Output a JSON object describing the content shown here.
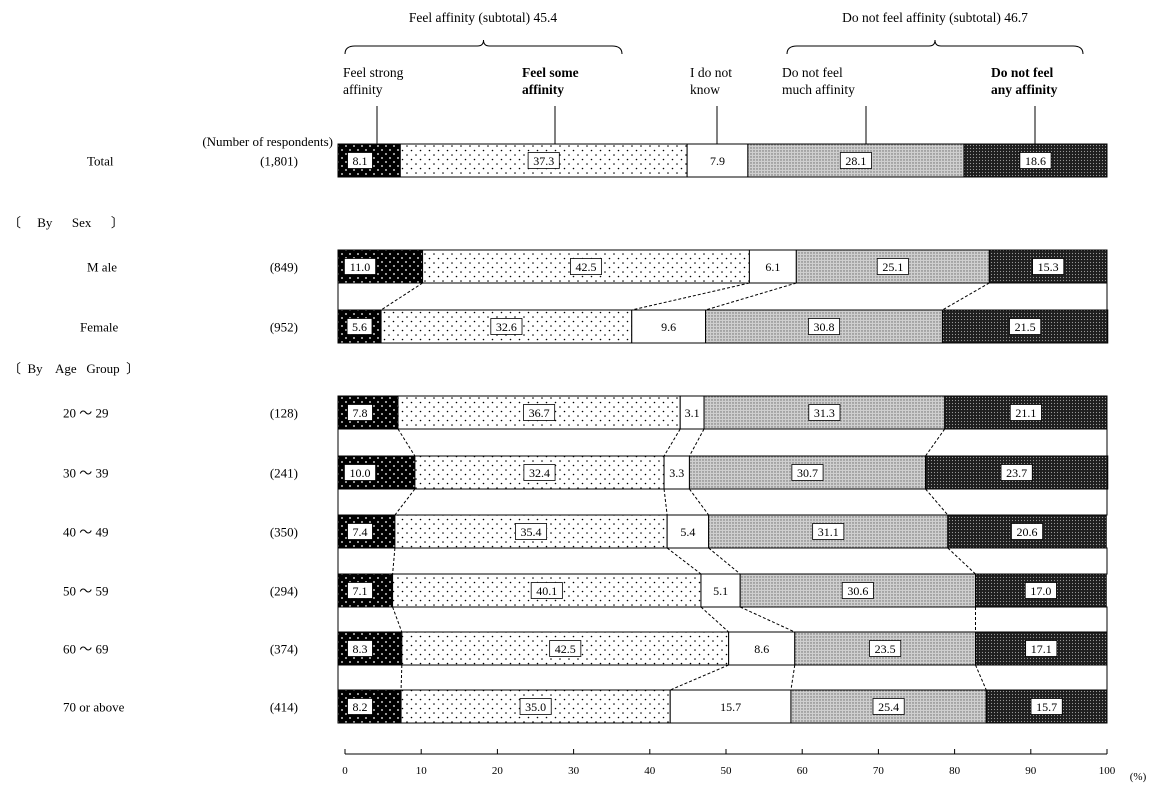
{
  "chart_data": {
    "type": "bar",
    "orientation": "horizontal",
    "stacked": true,
    "percent": true,
    "xlim": [
      0,
      100
    ],
    "xticks": [
      "0",
      "10",
      "20",
      "30",
      "40",
      "50",
      "60",
      "70",
      "80",
      "90",
      "100"
    ],
    "x_unit": "(%)",
    "respondents_header": "(Number of respondents)",
    "subtotals": [
      {
        "label": "Feel affinity  (subtotal) 45.4"
      },
      {
        "label": "Do not feel affinity  (subtotal) 46.7"
      }
    ],
    "series": [
      {
        "name": "Feel strong affinity",
        "header": [
          "Feel strong",
          "affinity"
        ],
        "fill": "solid-black-dots"
      },
      {
        "name": "Feel some affinity",
        "header": [
          "Feel some",
          "affinity"
        ],
        "fill": "sparse-dots"
      },
      {
        "name": "I do not know",
        "header": [
          "I do not",
          "know"
        ],
        "fill": "white"
      },
      {
        "name": "Do not feel much affinity",
        "header": [
          "Do not feel",
          "much affinity"
        ],
        "fill": "fine-dots"
      },
      {
        "name": "Do not feel any affinity",
        "header": [
          "Do not feel",
          "any affinity"
        ],
        "fill": "dense-dark"
      }
    ],
    "groups": [
      {
        "label": "〔     By      Sex      〕"
      },
      {
        "label": "〔  By    Age   Group  〕"
      }
    ],
    "rows": [
      {
        "category": "Total",
        "n": "(1,801)",
        "values": [
          8.1,
          37.3,
          7.9,
          28.1,
          18.6
        ]
      },
      {
        "category": "M ale",
        "n": "(849)",
        "values": [
          11.0,
          42.5,
          6.1,
          25.1,
          15.3
        ]
      },
      {
        "category": "Female",
        "n": "(952)",
        "values": [
          5.6,
          32.6,
          9.6,
          30.8,
          21.5
        ]
      },
      {
        "category": "20 ～ 29",
        "n": "(128)",
        "values": [
          7.8,
          36.7,
          3.1,
          31.3,
          21.1
        ]
      },
      {
        "category": "30 ～ 39",
        "n": "(241)",
        "values": [
          10.0,
          32.4,
          3.3,
          30.7,
          23.7
        ]
      },
      {
        "category": "40 ～ 49",
        "n": "(350)",
        "values": [
          7.4,
          35.4,
          5.4,
          31.1,
          20.6
        ]
      },
      {
        "category": "50 ～ 59",
        "n": "(294)",
        "values": [
          7.1,
          40.1,
          5.1,
          30.6,
          17.0
        ]
      },
      {
        "category": "60 ～ 69",
        "n": "(374)",
        "values": [
          8.3,
          42.5,
          8.6,
          23.5,
          17.1
        ]
      },
      {
        "category": "70 or above",
        "n": "(414)",
        "values": [
          8.2,
          35.0,
          15.7,
          25.4,
          15.7
        ]
      }
    ]
  }
}
